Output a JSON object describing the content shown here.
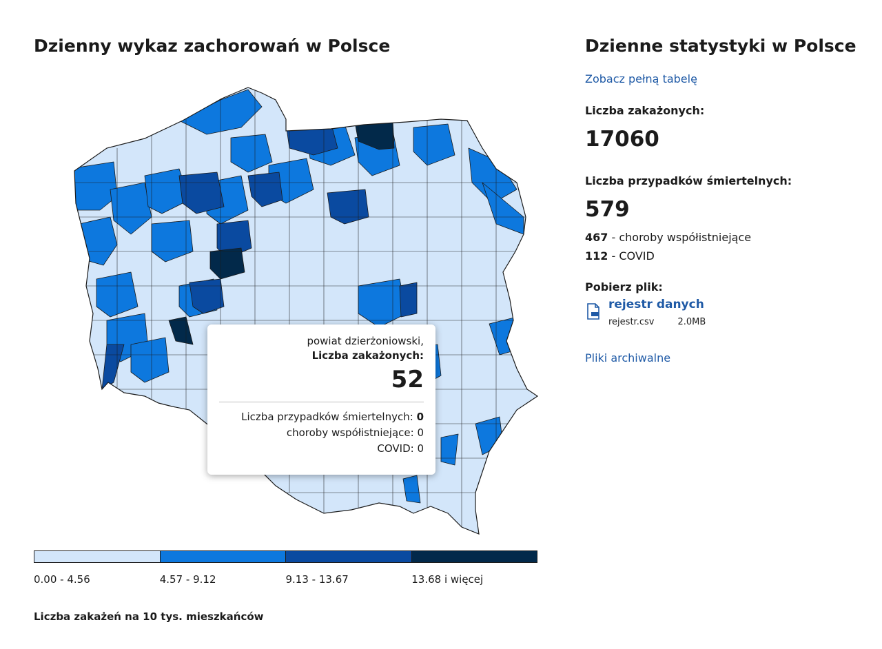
{
  "left": {
    "title": "Dzienny wykaz zachorowań w Polsce",
    "legend": {
      "ranges": [
        "0.00 - 4.56",
        "4.57 - 9.12",
        "9.13 - 13.67",
        "13.68 i więcej"
      ],
      "colors": [
        "#d3e6fa",
        "#0d78de",
        "#0a4aa0",
        "#02294a"
      ],
      "caption": "Liczba zakażeń na 10 tys. mieszkańców"
    },
    "map": {
      "outline_color": "#1b1b1b"
    },
    "tooltip": {
      "region": "powiat dzierżoniowski,",
      "cases_label": "Liczba zakażonych:",
      "cases_value": "52",
      "deaths_label": "Liczba przypadków śmiertelnych: ",
      "deaths_value": "0",
      "comorbid_label": "choroby współistniejące: ",
      "comorbid_value": "0",
      "covid_label": "COVID: ",
      "covid_value": "0"
    }
  },
  "right": {
    "title": "Dzienne statystyki w Polsce",
    "full_table_link": "Zobacz pełną tabelę",
    "cases_label": "Liczba zakażonych:",
    "cases_value": "17060",
    "deaths_label": "Liczba przypadków śmiertelnych:",
    "deaths_value": "579",
    "comorbid_value": "467",
    "comorbid_text": " - choroby współistniejące",
    "covid_value": "112",
    "covid_text": " - COVID",
    "download_label": "Pobierz plik:",
    "file_name": "rejestr danych",
    "file_format": "rejestr.csv",
    "file_size": "2.0MB",
    "archive_link": "Pliki archiwalne",
    "link_color": "#1f5aa6"
  }
}
